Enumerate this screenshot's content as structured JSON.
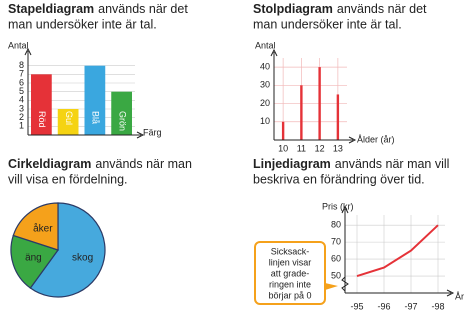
{
  "chart_data": [
    {
      "type": "bar",
      "title": "Stapeldiagram",
      "subtitle_lines": [
        "används när det",
        "man undersöker inte är tal."
      ],
      "ylabel": "Antal",
      "xlabel": "Färg",
      "categories": [
        "Röd",
        "Gul",
        "Blå",
        "Grön"
      ],
      "values": [
        7,
        3,
        8,
        5
      ],
      "colors": [
        "#e53238",
        "#f5d312",
        "#3aa7df",
        "#3aa843"
      ],
      "ylim": [
        0,
        9
      ],
      "yticks": [
        1,
        2,
        3,
        4,
        5,
        6,
        7,
        8
      ],
      "grid": true
    },
    {
      "type": "stem",
      "title": "Stolpdiagram",
      "subtitle_lines": [
        "används när det",
        "man undersöker inte är tal."
      ],
      "ylabel": "Antal",
      "xlabel": "Ålder (år)",
      "x": [
        10,
        11,
        12,
        13
      ],
      "values": [
        10,
        30,
        40,
        25
      ],
      "color": "#e53238",
      "xlim": [
        9.5,
        13.5
      ],
      "xticks": [
        10,
        11,
        12,
        13
      ],
      "ylim": [
        0,
        45
      ],
      "yticks": [
        10,
        20,
        30,
        40
      ],
      "grid": true
    },
    {
      "type": "pie",
      "title": "Cirkeldiagram",
      "subtitle_lines": [
        "används när man",
        "vill visa en fördelning."
      ],
      "categories": [
        "skog",
        "äng",
        "åker"
      ],
      "values": [
        60,
        20,
        20
      ],
      "colors": [
        "#46a9dd",
        "#3aa843",
        "#f5a11b"
      ]
    },
    {
      "type": "line",
      "title": "Linjediagram",
      "subtitle_lines": [
        "används när man vill",
        "beskriva en förändring över tid."
      ],
      "ylabel": "Pris (kr)",
      "xlabel": "År",
      "categories": [
        "-95",
        "-96",
        "-97",
        "-98"
      ],
      "values": [
        50,
        55,
        65,
        80
      ],
      "color": "#e53238",
      "ylim": [
        40,
        86
      ],
      "yticks": [
        50,
        60,
        70,
        80
      ],
      "grid": true,
      "annotation_lines": [
        "Sicksack-",
        "linjen visar",
        "att grade-",
        "ringen inte",
        "börjar på 0"
      ]
    }
  ]
}
